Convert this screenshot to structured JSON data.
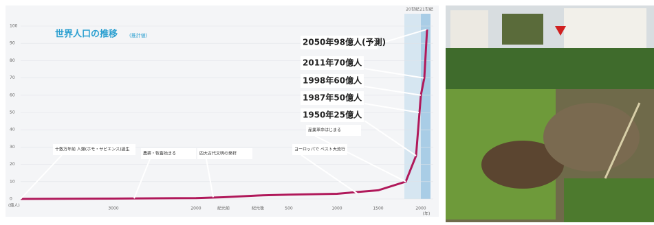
{
  "chart_data": {
    "type": "line",
    "title": "世界人口の推移",
    "subtitle": "(推計値)",
    "ylabel": "(億人)",
    "xlabel": "(年)",
    "categories": [
      null,
      "3000",
      "2000",
      "紀元前",
      "紀元後",
      "500",
      "1000",
      "1500",
      null,
      null,
      "2000",
      null,
      null
    ],
    "series": [
      {
        "name": "世界人口",
        "color": "#b0185a",
        "values": [
          0,
          0.2,
          0.5,
          1,
          2,
          2.5,
          3,
          5,
          10,
          25,
          60,
          70,
          98
        ]
      }
    ],
    "ylim": [
      0,
      100
    ],
    "yticks": [
      0,
      10,
      20,
      30,
      40,
      50,
      60,
      70,
      80,
      90,
      100
    ],
    "grid": true,
    "eras": [
      "20世紀",
      "21世紀"
    ],
    "annotations": [
      "2050年98億人(予測)",
      "2011年70億人",
      "1998年60億人",
      "1987年50億人",
      "1950年25億人",
      "産業革命はじまる",
      "ヨーロッパで ペスト大流行",
      "四大古代文明の発祥",
      "農耕・牧畜始まる",
      "十数万年前 人類(ホモ・サピエンス)誕生"
    ]
  }
}
